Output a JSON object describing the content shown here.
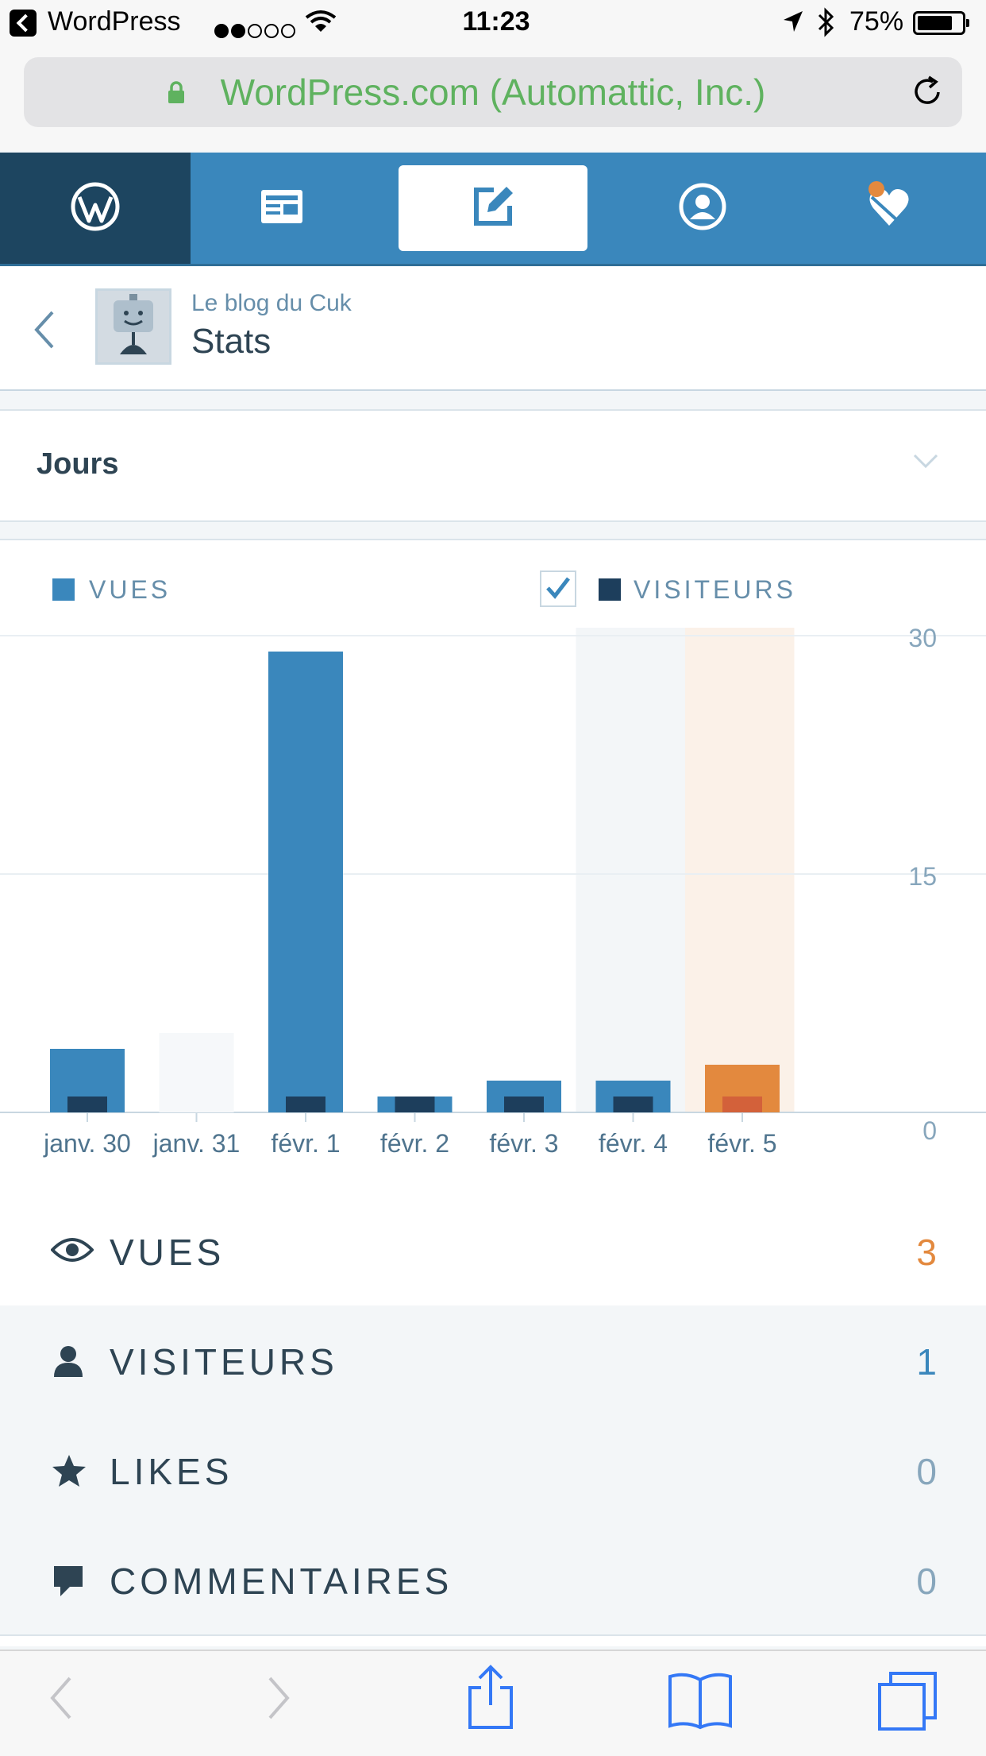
{
  "status_bar": {
    "carrier": "WordPress",
    "time": "11:23",
    "battery": "75%",
    "battery_level": 0.75
  },
  "browser": {
    "url_label": "WordPress.com (Automattic, Inc.)",
    "url_color": "#5fb25f"
  },
  "nav": {
    "items": [
      "wordpress-logo-icon",
      "reader-icon",
      "write-icon",
      "me-icon",
      "notifications-icon"
    ],
    "active": "write-icon"
  },
  "header": {
    "blog_name": "Le blog du Cuk",
    "page_title": "Stats"
  },
  "period": {
    "selected": "Jours"
  },
  "chart_data": {
    "type": "bar",
    "categories": [
      "janv. 30",
      "janv. 31",
      "févr. 1",
      "févr. 2",
      "févr. 3",
      "févr. 4",
      "févr. 5"
    ],
    "series": [
      {
        "name": "VUES",
        "values": [
          4,
          0,
          29,
          1,
          2,
          2,
          3
        ],
        "color": "#3a87bc"
      },
      {
        "name": "VISITEURS",
        "values": [
          1,
          0,
          1,
          1,
          1,
          1,
          1
        ],
        "color": "#1d3e5c"
      }
    ],
    "highlight_color": "#e3893e",
    "highlight_visitor_color": "#d3613a",
    "selected_index": 6,
    "hover_index": 5,
    "ylim": [
      0,
      30
    ],
    "yticks": [
      "30",
      "15",
      "0"
    ],
    "legend": [
      {
        "label": "VUES",
        "color": "#3a87bc"
      },
      {
        "label": "VISITEURS",
        "color": "#1d3e5c",
        "checked": true
      }
    ]
  },
  "stats": [
    {
      "label": "VUES",
      "value": "3",
      "icon": "eye-icon",
      "value_color": "#e3893e"
    },
    {
      "label": "VISITEURS",
      "value": "1",
      "icon": "person-icon",
      "value_color": "#3a87bc"
    },
    {
      "label": "LIKES",
      "value": "0",
      "icon": "star-icon",
      "value_color": "#87a6bc"
    },
    {
      "label": "COMMENTAIRES",
      "value": "0",
      "icon": "comment-icon",
      "value_color": "#87a6bc"
    }
  ],
  "toolbar": [
    "back-arrow-icon",
    "forward-arrow-icon",
    "share-icon",
    "bookmarks-icon",
    "tabs-icon"
  ]
}
